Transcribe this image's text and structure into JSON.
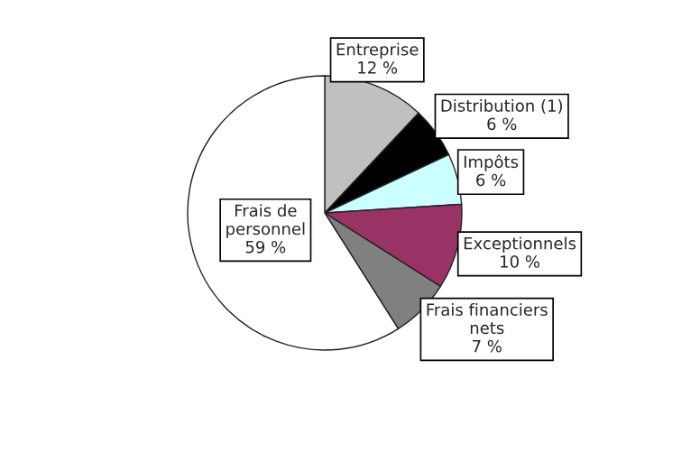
{
  "chart_data": {
    "type": "pie",
    "categories": [
      "Entreprise",
      "Distribution (1)",
      "Impôts",
      "Exceptionnels",
      "Frais financiers\nnets",
      "Frais de\npersonnel"
    ],
    "values": [
      12,
      6,
      6,
      10,
      7,
      59
    ],
    "value_labels": [
      "12 %",
      "6 %",
      "6 %",
      "10 %",
      "7 %",
      "59 %"
    ],
    "colors": [
      "#c0c0c0",
      "#000000",
      "#ccffff",
      "#993366",
      "#808080",
      "#ffffff"
    ],
    "legend": false
  }
}
